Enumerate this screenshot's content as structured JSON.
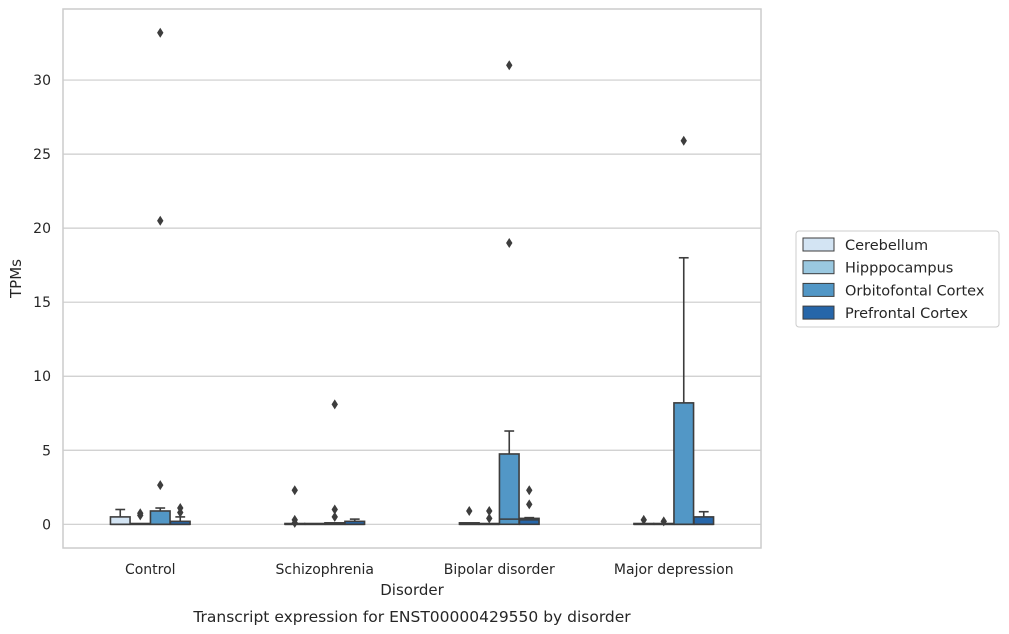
{
  "chart_data": {
    "type": "box",
    "title": "",
    "caption": "Transcript expression for ENST00000429550 by disorder",
    "xlabel": "Disorder",
    "ylabel": "TPMs",
    "ylim": [
      -1.6,
      34.8
    ],
    "yticks": [
      0,
      5,
      10,
      15,
      20,
      25,
      30
    ],
    "grid": "horizontal",
    "legend_position": "right",
    "categories": [
      "Control",
      "Schizophrenia",
      "Bipolar disorder",
      "Major depression"
    ],
    "series": [
      {
        "name": "Cerebellum",
        "color": "#d3e4f3",
        "boxes": [
          {
            "q1": 0,
            "median": 0,
            "q3": 0.5,
            "whislo": 0,
            "whishi": 1.0,
            "fliers": []
          },
          {
            "q1": 0,
            "median": 0,
            "q3": 0,
            "whislo": 0,
            "whishi": 0,
            "fliers": [
              2.3,
              0.3,
              0.1
            ]
          },
          {
            "q1": 0,
            "median": 0,
            "q3": 0.1,
            "whislo": 0,
            "whishi": 0.1,
            "fliers": [
              0.9
            ]
          },
          {
            "q1": 0,
            "median": 0,
            "q3": 0,
            "whislo": 0,
            "whishi": 0,
            "fliers": [
              0.3
            ]
          }
        ]
      },
      {
        "name": "Hipppocampus",
        "color": "#9ac8e0",
        "boxes": [
          {
            "q1": 0,
            "median": 0,
            "q3": 0,
            "whislo": 0,
            "whishi": 0,
            "fliers": [
              0.75,
              0.6
            ]
          },
          {
            "q1": 0,
            "median": 0,
            "q3": 0,
            "whislo": 0,
            "whishi": 0,
            "fliers": []
          },
          {
            "q1": 0,
            "median": 0,
            "q3": 0,
            "whislo": 0,
            "whishi": 0,
            "fliers": [
              0.9,
              0.4
            ]
          },
          {
            "q1": 0,
            "median": 0,
            "q3": 0,
            "whislo": 0,
            "whishi": 0,
            "fliers": [
              0.2
            ]
          }
        ]
      },
      {
        "name": "Orbitofontal Cortex",
        "color": "#5297c6",
        "boxes": [
          {
            "q1": 0,
            "median": 0,
            "q3": 0.9,
            "whislo": 0,
            "whishi": 1.1,
            "fliers": [
              2.65,
              20.5,
              33.2
            ]
          },
          {
            "q1": 0,
            "median": 0,
            "q3": 0.1,
            "whislo": 0,
            "whishi": 0.1,
            "fliers": [
              1.0,
              0.5,
              8.1
            ]
          },
          {
            "q1": 0,
            "median": 0.35,
            "q3": 4.75,
            "whislo": 0,
            "whishi": 6.3,
            "fliers": [
              19.0,
              31.0
            ]
          },
          {
            "q1": 0,
            "median": 0,
            "q3": 8.2,
            "whislo": 0,
            "whishi": 18.0,
            "fliers": [
              25.9
            ]
          }
        ]
      },
      {
        "name": "Prefrontal Cortex",
        "color": "#2666a9",
        "boxes": [
          {
            "q1": 0,
            "median": 0,
            "q3": 0.2,
            "whislo": 0,
            "whishi": 0.5,
            "fliers": [
              1.1,
              0.8
            ]
          },
          {
            "q1": 0,
            "median": 0,
            "q3": 0.2,
            "whislo": 0,
            "whishi": 0.35,
            "fliers": []
          },
          {
            "q1": 0,
            "median": 0.3,
            "q3": 0.4,
            "whislo": 0,
            "whishi": 0.45,
            "fliers": [
              2.3,
              1.35
            ]
          },
          {
            "q1": 0,
            "median": 0,
            "q3": 0.5,
            "whislo": 0,
            "whishi": 0.85,
            "fliers": []
          }
        ]
      }
    ]
  }
}
